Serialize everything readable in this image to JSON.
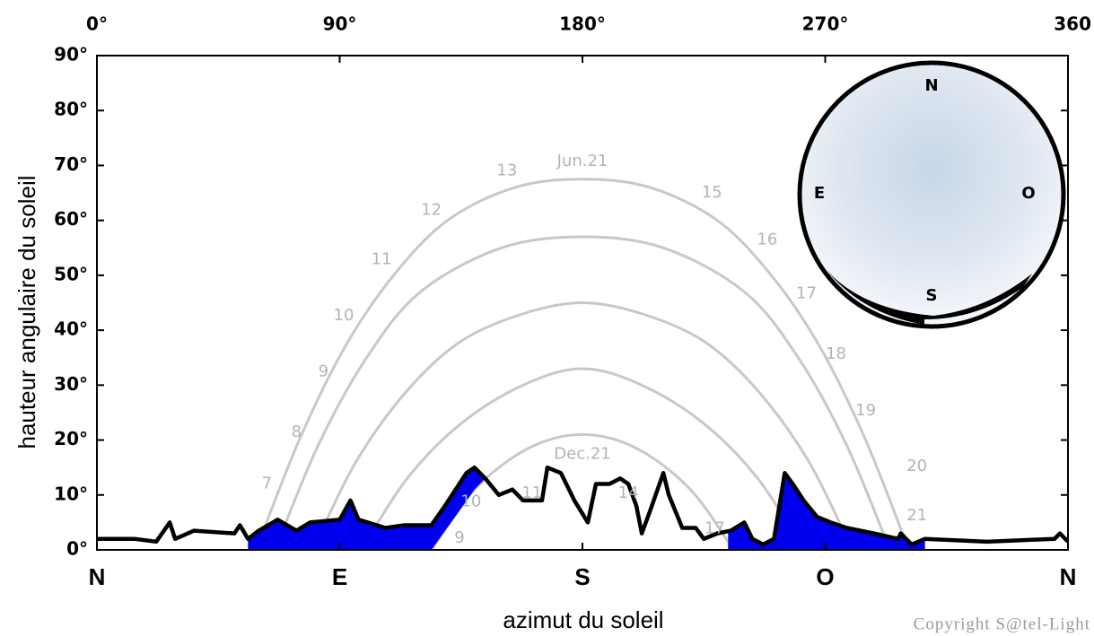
{
  "chart_data": {
    "type": "line",
    "x_label": "azimut du soleil",
    "y_label": "hauteur angulaire du soleil",
    "copyright": "Copyright S@tel-Light",
    "xlim": [
      0,
      360
    ],
    "ylim": [
      0,
      90
    ],
    "xticks": [
      {
        "value": 0,
        "label": "N"
      },
      {
        "value": 90,
        "label": "E"
      },
      {
        "value": 180,
        "label": "S"
      },
      {
        "value": 270,
        "label": "O"
      },
      {
        "value": 360,
        "label": "N"
      }
    ],
    "x2ticks": [
      {
        "value": 0,
        "label": "0°"
      },
      {
        "value": 90,
        "label": "90°"
      },
      {
        "value": 180,
        "label": "180°"
      },
      {
        "value": 270,
        "label": "270°"
      },
      360
    ],
    "yticks": [
      {
        "value": 0,
        "label": "0°"
      },
      {
        "value": 10,
        "label": "10°"
      },
      {
        "value": 20,
        "label": "20°"
      },
      {
        "value": 30,
        "label": "30°"
      },
      {
        "value": 40,
        "label": "40°"
      },
      {
        "value": 50,
        "label": "50°"
      },
      {
        "value": 60,
        "label": "60°"
      },
      {
        "value": 70,
        "label": "70°"
      },
      {
        "value": 80,
        "label": "80°"
      },
      {
        "value": 90,
        "label": "90°"
      }
    ],
    "series": [
      {
        "name": "Jun.21",
        "color": "#c8c8c8",
        "x": [
          59,
          75,
          92,
          110,
          130,
          155,
          180,
          205,
          230,
          250,
          268,
          285,
          301
        ],
        "values": [
          0,
          20,
          37,
          50,
          60,
          66,
          67.5,
          66,
          60,
          50,
          37,
          20,
          0
        ]
      },
      {
        "color": "#c8c8c8",
        "x": [
          66,
          82,
          100,
          120,
          150,
          180,
          210,
          240,
          260,
          278,
          294
        ],
        "values": [
          0,
          19,
          35,
          47,
          55,
          57,
          55,
          47,
          35,
          19,
          0
        ]
      },
      {
        "color": "#c8c8c8",
        "x": [
          80,
          96,
          115,
          135,
          158,
          180,
          202,
          225,
          245,
          264,
          280
        ],
        "values": [
          0,
          16,
          29,
          38,
          43,
          45,
          43,
          38,
          29,
          16,
          0
        ]
      },
      {
        "color": "#c8c8c8",
        "x": [
          98,
          115,
          135,
          158,
          180,
          202,
          225,
          245,
          262
        ],
        "values": [
          0,
          13,
          23,
          30,
          33,
          30,
          23,
          13,
          0
        ]
      },
      {
        "name": "Dec.21",
        "color": "#c8c8c8",
        "x": [
          124,
          140,
          160,
          180,
          200,
          220,
          236
        ],
        "values": [
          0,
          11,
          18.5,
          21,
          18.5,
          11,
          0
        ]
      },
      {
        "color": "#000000",
        "x": [
          0,
          14,
          22,
          27,
          29,
          36,
          51,
          53,
          56,
          60,
          67,
          74,
          79,
          90,
          94,
          97,
          107,
          114,
          124,
          129,
          137,
          140,
          144,
          149,
          154,
          158,
          165,
          167,
          172,
          177,
          182,
          185,
          190,
          194,
          197,
          200,
          202,
          205,
          210,
          212,
          217,
          222,
          225,
          230,
          235,
          240,
          243,
          247,
          251,
          255,
          258,
          262,
          267,
          272,
          278,
          288,
          297,
          298,
          302,
          307,
          330,
          355,
          357,
          360
        ],
        "values": [
          2,
          2,
          1.5,
          5,
          2,
          3.5,
          3,
          4.5,
          2,
          3.5,
          5.5,
          3.5,
          5,
          5.5,
          9,
          5.5,
          4,
          4.5,
          4.5,
          8,
          14,
          15,
          13,
          10,
          11,
          9,
          9,
          15,
          14,
          9,
          5,
          12,
          12,
          13,
          12,
          8,
          3,
          7,
          14,
          10,
          4,
          4,
          2,
          3,
          3.5,
          5,
          2,
          1,
          2,
          14,
          12,
          9,
          6,
          5,
          4,
          3,
          2,
          3,
          1,
          2,
          1.5,
          2,
          3,
          1.5
        ]
      }
    ],
    "areas": [
      {
        "color": "#0000ee",
        "x": [
          56,
          60,
          67,
          74,
          79,
          90,
          94,
          97,
          107,
          114,
          124,
          129,
          137,
          140,
          144
        ],
        "values": [
          2,
          3.5,
          5.5,
          3.5,
          5,
          5.5,
          9,
          5.5,
          4,
          4.5,
          4.5,
          8,
          14,
          15,
          13
        ],
        "base": [
          0,
          0,
          0,
          0,
          0,
          0,
          0,
          0,
          0,
          0,
          0,
          3.4,
          8.9,
          11,
          13
        ]
      },
      {
        "color": "#0000ee",
        "x": [
          234,
          235,
          240,
          243,
          247,
          251,
          255,
          258,
          262,
          267,
          272,
          278,
          288,
          297,
          298,
          302,
          307
        ],
        "values": [
          3,
          3.5,
          5,
          2,
          1,
          2,
          14,
          12,
          9,
          6,
          5,
          4,
          3,
          2,
          3,
          1,
          2
        ],
        "base": [
          0,
          0,
          0,
          0,
          0,
          0,
          0,
          0,
          0,
          0,
          0,
          0,
          0,
          0,
          0,
          0,
          0
        ]
      }
    ],
    "hour_labels": [
      {
        "label": "7",
        "x": 63,
        "y": 12
      },
      {
        "label": "8",
        "x": 74,
        "y": 21.4
      },
      {
        "label": "9",
        "x": 84,
        "y": 32.4
      },
      {
        "label": "10",
        "x": 91.5,
        "y": 42.6
      },
      {
        "label": "11",
        "x": 105.5,
        "y": 52.8
      },
      {
        "label": "12",
        "x": 124,
        "y": 61.8
      },
      {
        "label": "13",
        "x": 152,
        "y": 69
      },
      {
        "label": "15",
        "x": 228,
        "y": 65
      },
      {
        "label": "16",
        "x": 248.5,
        "y": 56.4
      },
      {
        "label": "17",
        "x": 263,
        "y": 46.6
      },
      {
        "label": "18",
        "x": 274,
        "y": 35.6
      },
      {
        "label": "19",
        "x": 285,
        "y": 25.3
      },
      {
        "label": "20",
        "x": 304,
        "y": 15.2
      },
      {
        "label": "21",
        "x": 304,
        "y": 6.2
      },
      {
        "label": "9",
        "x": 134.4,
        "y": 2.1
      },
      {
        "label": "10",
        "x": 138.7,
        "y": 8.7
      },
      {
        "label": "11",
        "x": 161.3,
        "y": 10.3
      },
      {
        "label": "14",
        "x": 197,
        "y": 10.3
      },
      {
        "label": "17",
        "x": 229,
        "y": 3.8
      }
    ]
  },
  "inset": {
    "labels": [
      "N",
      "E",
      "O",
      "S"
    ]
  }
}
